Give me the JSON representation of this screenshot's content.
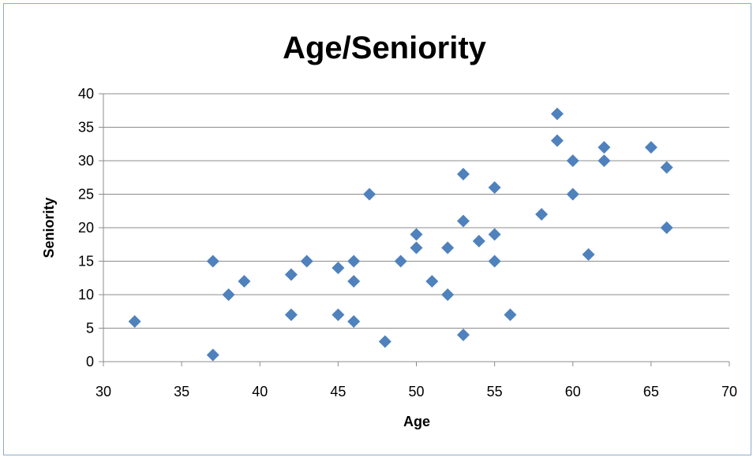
{
  "chart_data": {
    "type": "scatter",
    "title": "Age/Seniority",
    "xlabel": "Age",
    "ylabel": "Seniority",
    "xlim": [
      30,
      70
    ],
    "ylim": [
      0,
      40
    ],
    "x_ticks": [
      "30",
      "35",
      "40",
      "45",
      "50",
      "55",
      "60",
      "65",
      "70"
    ],
    "y_ticks": [
      "0",
      "5",
      "10",
      "15",
      "20",
      "25",
      "30",
      "35",
      "40"
    ],
    "grid": true,
    "legend": "none",
    "marker": "diamond",
    "color": "#4f81bd",
    "points": [
      {
        "x": 32,
        "y": 6
      },
      {
        "x": 37,
        "y": 15
      },
      {
        "x": 37,
        "y": 1
      },
      {
        "x": 38,
        "y": 10
      },
      {
        "x": 39,
        "y": 12
      },
      {
        "x": 42,
        "y": 13
      },
      {
        "x": 42,
        "y": 7
      },
      {
        "x": 43,
        "y": 15
      },
      {
        "x": 45,
        "y": 14
      },
      {
        "x": 45,
        "y": 7
      },
      {
        "x": 46,
        "y": 15
      },
      {
        "x": 46,
        "y": 12
      },
      {
        "x": 46,
        "y": 6
      },
      {
        "x": 47,
        "y": 25
      },
      {
        "x": 48,
        "y": 3
      },
      {
        "x": 49,
        "y": 15
      },
      {
        "x": 50,
        "y": 19
      },
      {
        "x": 50,
        "y": 17
      },
      {
        "x": 51,
        "y": 12
      },
      {
        "x": 52,
        "y": 17
      },
      {
        "x": 52,
        "y": 10
      },
      {
        "x": 53,
        "y": 28
      },
      {
        "x": 53,
        "y": 21
      },
      {
        "x": 53,
        "y": 4
      },
      {
        "x": 54,
        "y": 18
      },
      {
        "x": 55,
        "y": 26
      },
      {
        "x": 55,
        "y": 19
      },
      {
        "x": 55,
        "y": 15
      },
      {
        "x": 56,
        "y": 7
      },
      {
        "x": 58,
        "y": 22
      },
      {
        "x": 59,
        "y": 37
      },
      {
        "x": 59,
        "y": 33
      },
      {
        "x": 60,
        "y": 30
      },
      {
        "x": 60,
        "y": 25
      },
      {
        "x": 61,
        "y": 16
      },
      {
        "x": 62,
        "y": 32
      },
      {
        "x": 62,
        "y": 30
      },
      {
        "x": 65,
        "y": 32
      },
      {
        "x": 66,
        "y": 29
      },
      {
        "x": 66,
        "y": 20
      }
    ]
  }
}
